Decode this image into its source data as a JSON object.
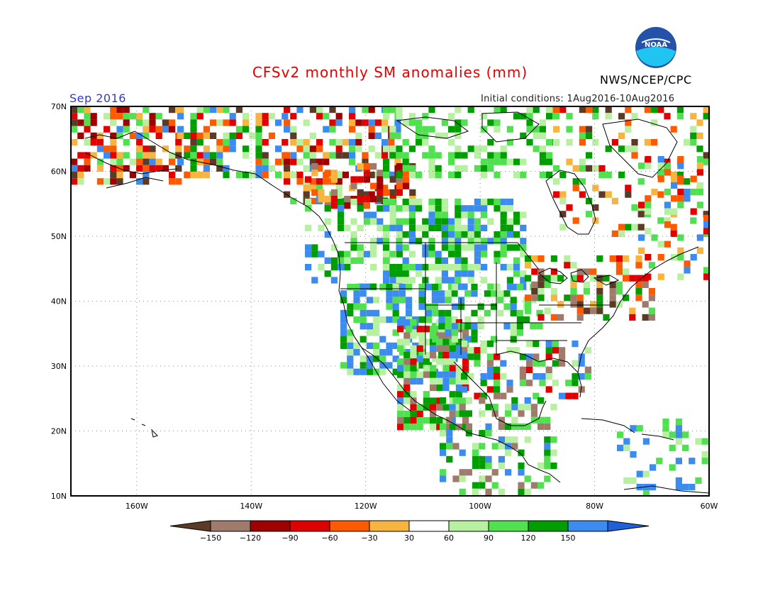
{
  "title": "CFSv2 monthly SM anomalies (mm)",
  "valid_month": "Sep 2016",
  "initial_conditions": "Initial conditions: 1Aug2016-10Aug2016",
  "agency": "NWS/NCEP/CPC",
  "logo_text": "NOAA",
  "map": {
    "lat_labels": [
      "70N",
      "60N",
      "50N",
      "40N",
      "30N",
      "20N",
      "10N"
    ],
    "lon_labels": [
      "160W",
      "140W",
      "120W",
      "100W",
      "80W",
      "60W"
    ]
  },
  "legend": {
    "labels": [
      "−150",
      "−120",
      "−90",
      "−60",
      "−30",
      "30",
      "60",
      "90",
      "120",
      "150"
    ],
    "colors": [
      "#5c3a28",
      "#a07b6c",
      "#a00000",
      "#e00000",
      "#ff5a00",
      "#f8b440",
      "#ffffff",
      "#b6f0a0",
      "#50e050",
      "#009e00",
      "#3c8cf0",
      "#2060d8"
    ]
  }
}
